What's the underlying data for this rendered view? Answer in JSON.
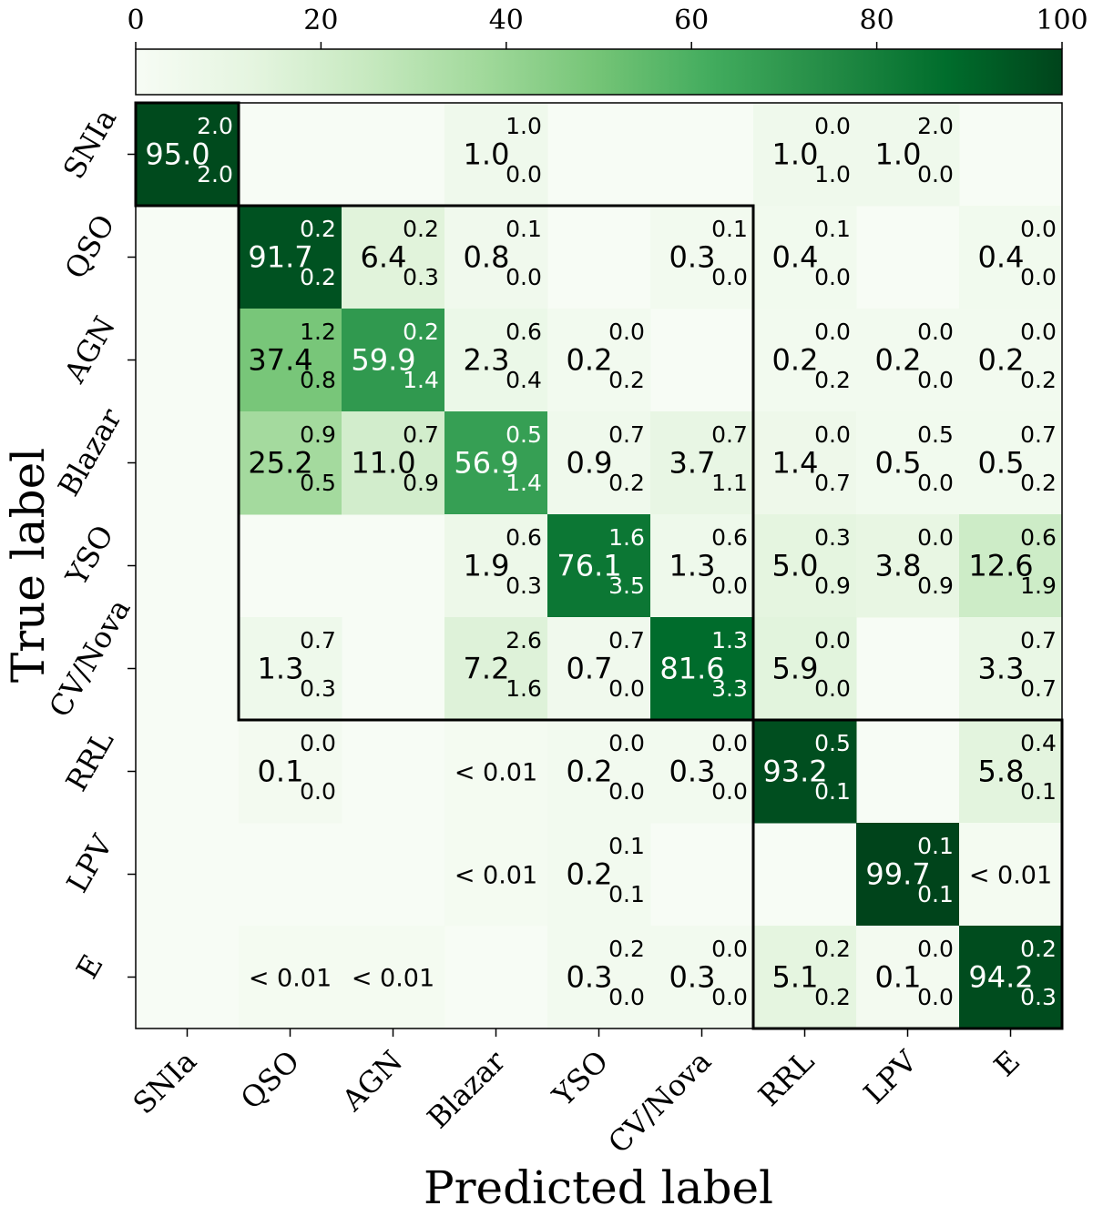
{
  "chart_data": {
    "type": "heatmap",
    "xlabel": "Predicted label",
    "ylabel": "True label",
    "categories": [
      "SNIa",
      "QSO",
      "AGN",
      "Blazar",
      "YSO",
      "CV/Nova",
      "RRL",
      "LPV",
      "E"
    ],
    "colorbar": {
      "range": [
        0,
        100
      ],
      "ticks": [
        0,
        20,
        40,
        60,
        80,
        100
      ],
      "colormap": "Greens",
      "color_low": "#f7fcf5",
      "color_high": "#00441b"
    },
    "cells": [
      {
        "row": 0,
        "col": 0,
        "value": "95.0",
        "v": 95.0,
        "upper": "2.0",
        "lower": "2.0"
      },
      {
        "row": 0,
        "col": 3,
        "value": "1.0",
        "v": 1.0,
        "upper": "1.0",
        "lower": "0.0"
      },
      {
        "row": 0,
        "col": 6,
        "value": "1.0",
        "v": 1.0,
        "upper": "0.0",
        "lower": "1.0"
      },
      {
        "row": 0,
        "col": 7,
        "value": "1.0",
        "v": 1.0,
        "upper": "2.0",
        "lower": "0.0"
      },
      {
        "row": 1,
        "col": 1,
        "value": "91.7",
        "v": 91.7,
        "upper": "0.2",
        "lower": "0.2"
      },
      {
        "row": 1,
        "col": 2,
        "value": "6.4",
        "v": 6.4,
        "upper": "0.2",
        "lower": "0.3"
      },
      {
        "row": 1,
        "col": 3,
        "value": "0.8",
        "v": 0.8,
        "upper": "0.1",
        "lower": "0.0"
      },
      {
        "row": 1,
        "col": 5,
        "value": "0.3",
        "v": 0.3,
        "upper": "0.1",
        "lower": "0.0"
      },
      {
        "row": 1,
        "col": 6,
        "value": "0.4",
        "v": 0.4,
        "upper": "0.1",
        "lower": "0.0"
      },
      {
        "row": 1,
        "col": 8,
        "value": "0.4",
        "v": 0.4,
        "upper": "0.0",
        "lower": "0.0"
      },
      {
        "row": 2,
        "col": 1,
        "value": "37.4",
        "v": 37.4,
        "upper": "1.2",
        "lower": "0.8"
      },
      {
        "row": 2,
        "col": 2,
        "value": "59.9",
        "v": 59.9,
        "upper": "0.2",
        "lower": "1.4"
      },
      {
        "row": 2,
        "col": 3,
        "value": "2.3",
        "v": 2.3,
        "upper": "0.6",
        "lower": "0.4"
      },
      {
        "row": 2,
        "col": 4,
        "value": "0.2",
        "v": 0.2,
        "upper": "0.0",
        "lower": "0.2"
      },
      {
        "row": 2,
        "col": 6,
        "value": "0.2",
        "v": 0.2,
        "upper": "0.0",
        "lower": "0.2"
      },
      {
        "row": 2,
        "col": 7,
        "value": "0.2",
        "v": 0.2,
        "upper": "0.0",
        "lower": "0.0"
      },
      {
        "row": 2,
        "col": 8,
        "value": "0.2",
        "v": 0.2,
        "upper": "0.0",
        "lower": "0.2"
      },
      {
        "row": 3,
        "col": 1,
        "value": "25.2",
        "v": 25.2,
        "upper": "0.9",
        "lower": "0.5"
      },
      {
        "row": 3,
        "col": 2,
        "value": "11.0",
        "v": 11.0,
        "upper": "0.7",
        "lower": "0.9"
      },
      {
        "row": 3,
        "col": 3,
        "value": "56.9",
        "v": 56.9,
        "upper": "0.5",
        "lower": "1.4"
      },
      {
        "row": 3,
        "col": 4,
        "value": "0.9",
        "v": 0.9,
        "upper": "0.7",
        "lower": "0.2"
      },
      {
        "row": 3,
        "col": 5,
        "value": "3.7",
        "v": 3.7,
        "upper": "0.7",
        "lower": "1.1"
      },
      {
        "row": 3,
        "col": 6,
        "value": "1.4",
        "v": 1.4,
        "upper": "0.0",
        "lower": "0.7"
      },
      {
        "row": 3,
        "col": 7,
        "value": "0.5",
        "v": 0.5,
        "upper": "0.5",
        "lower": "0.0"
      },
      {
        "row": 3,
        "col": 8,
        "value": "0.5",
        "v": 0.5,
        "upper": "0.7",
        "lower": "0.2"
      },
      {
        "row": 4,
        "col": 3,
        "value": "1.9",
        "v": 1.9,
        "upper": "0.6",
        "lower": "0.3"
      },
      {
        "row": 4,
        "col": 4,
        "value": "76.1",
        "v": 76.1,
        "upper": "1.6",
        "lower": "3.5"
      },
      {
        "row": 4,
        "col": 5,
        "value": "1.3",
        "v": 1.3,
        "upper": "0.6",
        "lower": "0.0"
      },
      {
        "row": 4,
        "col": 6,
        "value": "5.0",
        "v": 5.0,
        "upper": "0.3",
        "lower": "0.9"
      },
      {
        "row": 4,
        "col": 7,
        "value": "3.8",
        "v": 3.8,
        "upper": "0.0",
        "lower": "0.9"
      },
      {
        "row": 4,
        "col": 8,
        "value": "12.6",
        "v": 12.6,
        "upper": "0.6",
        "lower": "1.9"
      },
      {
        "row": 5,
        "col": 1,
        "value": "1.3",
        "v": 1.3,
        "upper": "0.7",
        "lower": "0.3"
      },
      {
        "row": 5,
        "col": 3,
        "value": "7.2",
        "v": 7.2,
        "upper": "2.6",
        "lower": "1.6"
      },
      {
        "row": 5,
        "col": 4,
        "value": "0.7",
        "v": 0.7,
        "upper": "0.7",
        "lower": "0.0"
      },
      {
        "row": 5,
        "col": 5,
        "value": "81.6",
        "v": 81.6,
        "upper": "1.3",
        "lower": "3.3"
      },
      {
        "row": 5,
        "col": 6,
        "value": "5.9",
        "v": 5.9,
        "upper": "0.0",
        "lower": "0.0"
      },
      {
        "row": 5,
        "col": 8,
        "value": "3.3",
        "v": 3.3,
        "upper": "0.7",
        "lower": "0.7"
      },
      {
        "row": 6,
        "col": 1,
        "value": "0.1",
        "v": 0.1,
        "upper": "0.0",
        "lower": "0.0"
      },
      {
        "row": 6,
        "col": 3,
        "value": "< 0.01",
        "v": 0.005
      },
      {
        "row": 6,
        "col": 4,
        "value": "0.2",
        "v": 0.2,
        "upper": "0.0",
        "lower": "0.0"
      },
      {
        "row": 6,
        "col": 5,
        "value": "0.3",
        "v": 0.3,
        "upper": "0.0",
        "lower": "0.0"
      },
      {
        "row": 6,
        "col": 6,
        "value": "93.2",
        "v": 93.2,
        "upper": "0.5",
        "lower": "0.1"
      },
      {
        "row": 6,
        "col": 8,
        "value": "5.8",
        "v": 5.8,
        "upper": "0.4",
        "lower": "0.1"
      },
      {
        "row": 7,
        "col": 3,
        "value": "< 0.01",
        "v": 0.005
      },
      {
        "row": 7,
        "col": 4,
        "value": "0.2",
        "v": 0.2,
        "upper": "0.1",
        "lower": "0.1"
      },
      {
        "row": 7,
        "col": 7,
        "value": "99.7",
        "v": 99.7,
        "upper": "0.1",
        "lower": "0.1"
      },
      {
        "row": 7,
        "col": 8,
        "value": "< 0.01",
        "v": 0.005
      },
      {
        "row": 8,
        "col": 1,
        "value": "< 0.01",
        "v": 0.005
      },
      {
        "row": 8,
        "col": 2,
        "value": "< 0.01",
        "v": 0.005
      },
      {
        "row": 8,
        "col": 4,
        "value": "0.3",
        "v": 0.3,
        "upper": "0.2",
        "lower": "0.0"
      },
      {
        "row": 8,
        "col": 5,
        "value": "0.3",
        "v": 0.3,
        "upper": "0.0",
        "lower": "0.0"
      },
      {
        "row": 8,
        "col": 6,
        "value": "5.1",
        "v": 5.1,
        "upper": "0.2",
        "lower": "0.2"
      },
      {
        "row": 8,
        "col": 7,
        "value": "0.1",
        "v": 0.1,
        "upper": "0.0",
        "lower": "0.0"
      },
      {
        "row": 8,
        "col": 8,
        "value": "94.2",
        "v": 94.2,
        "upper": "0.2",
        "lower": "0.3"
      }
    ],
    "grouping_boxes": [
      {
        "rows": [
          0,
          0
        ],
        "cols": [
          0,
          0
        ]
      },
      {
        "rows": [
          1,
          5
        ],
        "cols": [
          1,
          5
        ]
      },
      {
        "rows": [
          6,
          8
        ],
        "cols": [
          6,
          8
        ]
      }
    ]
  }
}
